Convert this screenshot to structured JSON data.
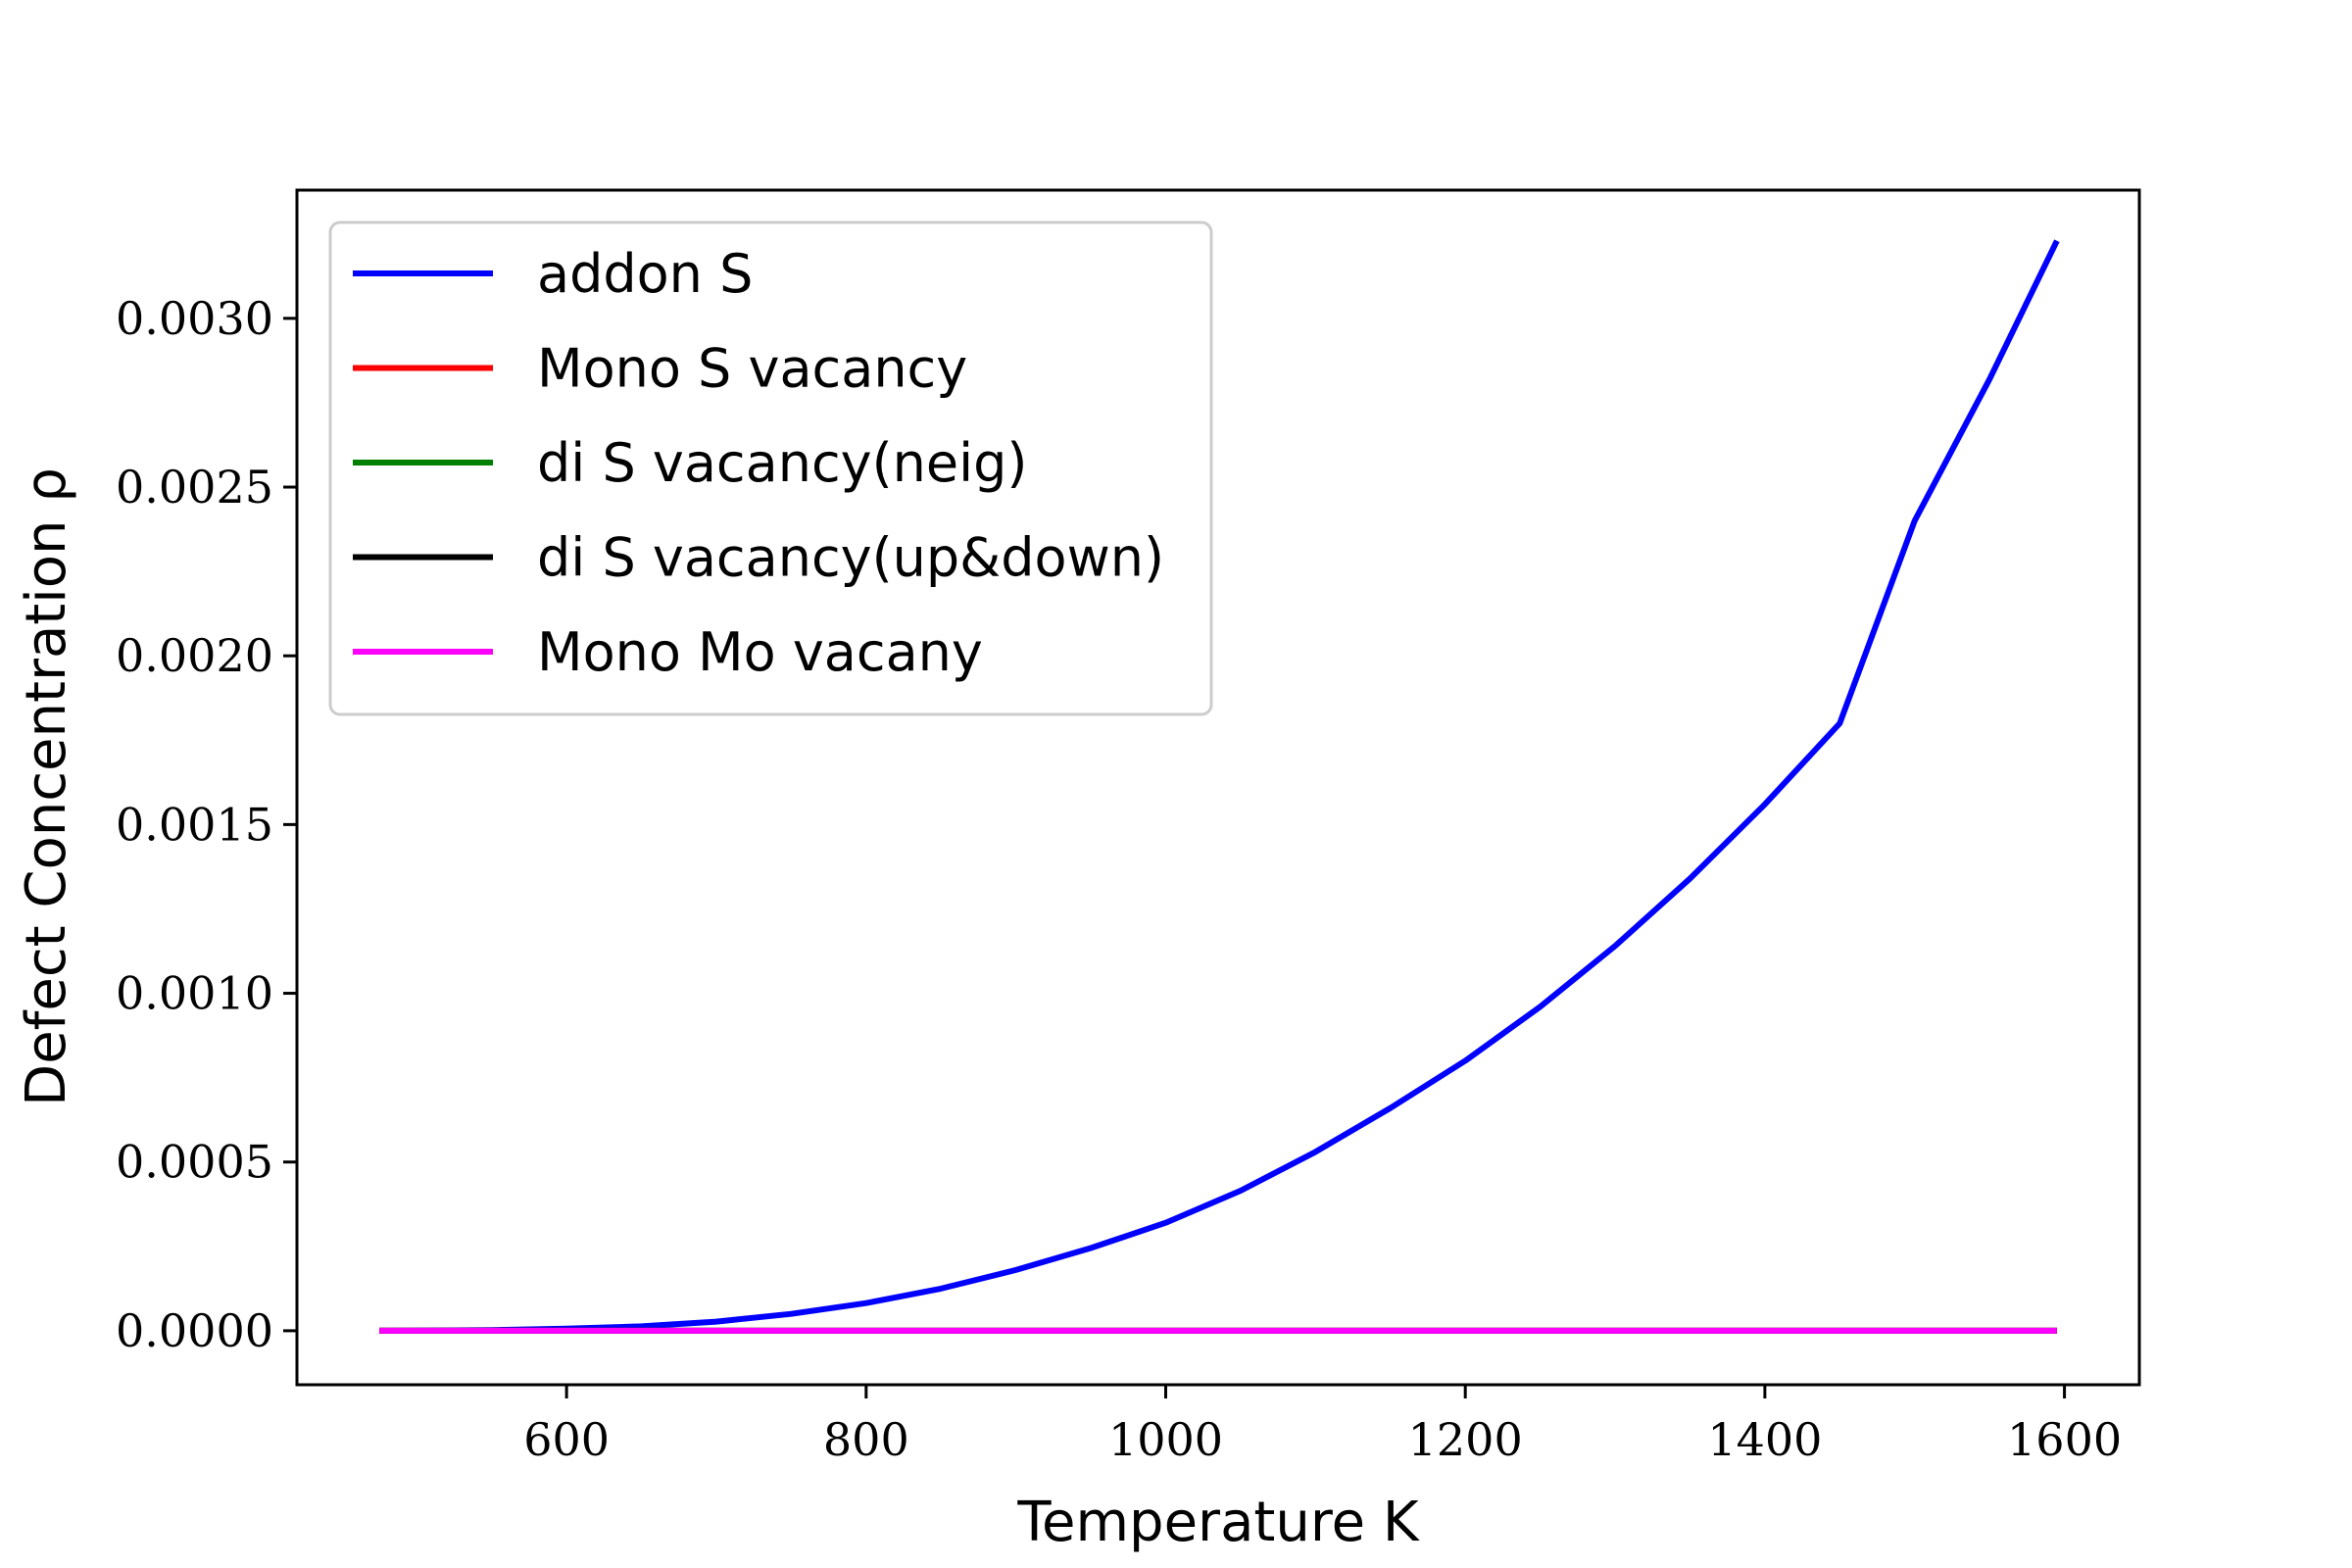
{
  "chart_data": {
    "type": "line",
    "xlabel": "Temperature K",
    "ylabel": "Defect Concentration ρ",
    "xlim": [
      420,
      1650
    ],
    "ylim": [
      -0.00016,
      0.00338
    ],
    "xticks": [
      600,
      800,
      1000,
      1200,
      1400,
      1600
    ],
    "xtick_labels": [
      "600",
      "800",
      "1000",
      "1200",
      "1400",
      "1600"
    ],
    "yticks": [
      0,
      0.0005,
      0.001,
      0.0015,
      0.002,
      0.0025,
      0.003
    ],
    "ytick_labels": [
      "0.0000",
      "0.0005",
      "0.0010",
      "0.0015",
      "0.0020",
      "0.0025",
      "0.0030"
    ],
    "grid": false,
    "legend_position": "top-left",
    "x": [
      475,
      500,
      550,
      600,
      650,
      700,
      750,
      800,
      850,
      900,
      950,
      1000,
      1050,
      1100,
      1150,
      1200,
      1250,
      1300,
      1350,
      1400,
      1450,
      1500,
      1550,
      1595
    ],
    "series": [
      {
        "name": "addon S",
        "color": "#0000ff",
        "values": [
          0.0,
          5e-07,
          2e-06,
          6e-06,
          1.3e-05,
          2.7e-05,
          5e-05,
          8.2e-05,
          0.000125,
          0.00018,
          0.000245,
          0.00032,
          0.000415,
          0.00053,
          0.00066,
          0.0008,
          0.00096,
          0.00114,
          0.00134,
          0.00156,
          0.0018,
          0.0024,
          0.00282,
          0.00323
        ]
      },
      {
        "name": "Mono S vacancy",
        "color": "#ff0000",
        "values": [
          0,
          0,
          0,
          0,
          0,
          0,
          0,
          0,
          0,
          0,
          0,
          0,
          0,
          0,
          0,
          0,
          0,
          0,
          0,
          0,
          0,
          0,
          0,
          0
        ]
      },
      {
        "name": "di S vacancy(neig)",
        "color": "#008000",
        "values": [
          0,
          0,
          0,
          0,
          0,
          0,
          0,
          0,
          0,
          0,
          0,
          0,
          0,
          0,
          0,
          0,
          0,
          0,
          0,
          0,
          0,
          0,
          0,
          0
        ]
      },
      {
        "name": "di S vacancy(up&down)",
        "color": "#000000",
        "values": [
          0,
          0,
          0,
          0,
          0,
          0,
          0,
          0,
          0,
          0,
          0,
          0,
          0,
          0,
          0,
          0,
          0,
          0,
          0,
          0,
          0,
          0,
          0,
          0
        ]
      },
      {
        "name": "Mono Mo vacany",
        "color": "#ff00ff",
        "values": [
          0,
          0,
          0,
          0,
          0,
          0,
          0,
          0,
          0,
          0,
          0,
          0,
          0,
          0,
          0,
          0,
          0,
          0,
          0,
          0,
          0,
          0,
          0,
          0
        ]
      }
    ]
  }
}
